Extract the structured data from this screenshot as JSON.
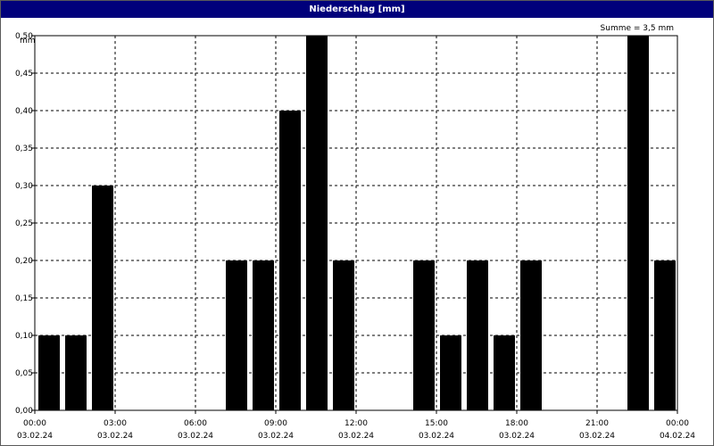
{
  "chart_data": {
    "type": "bar",
    "title": "Niederschlag [mm]",
    "ylabel": "mm",
    "annotation": "Summe = 3,5 mm",
    "ylim": [
      0,
      0.5
    ],
    "xlim": [
      "03.02.24 00:00",
      "04.02.24 00:00"
    ],
    "yticks": [
      "0,00",
      "0,05",
      "0,10",
      "0,15",
      "0,20",
      "0,25",
      "0,30",
      "0,35",
      "0,40",
      "0,45",
      "0,50"
    ],
    "xticks": [
      {
        "time": "00:00",
        "date": "03.02.24"
      },
      {
        "time": "03:00",
        "date": "03.02.24"
      },
      {
        "time": "06:00",
        "date": "03.02.24"
      },
      {
        "time": "09:00",
        "date": "03.02.24"
      },
      {
        "time": "12:00",
        "date": "03.02.24"
      },
      {
        "time": "15:00",
        "date": "03.02.24"
      },
      {
        "time": "18:00",
        "date": "03.02.24"
      },
      {
        "time": "21:00",
        "date": "03.02.24"
      },
      {
        "time": "00:00",
        "date": "04.02.24"
      }
    ],
    "categories": [
      "00:00",
      "01:00",
      "02:00",
      "03:00",
      "04:00",
      "05:00",
      "06:00",
      "07:00",
      "08:00",
      "09:00",
      "10:00",
      "11:00",
      "12:00",
      "13:00",
      "14:00",
      "15:00",
      "16:00",
      "17:00",
      "18:00",
      "19:00",
      "20:00",
      "21:00",
      "22:00",
      "23:00"
    ],
    "values": [
      0.1,
      0.1,
      0.3,
      0,
      0,
      0,
      0,
      0.2,
      0.2,
      0.4,
      0.5,
      0.2,
      0,
      0,
      0.2,
      0.1,
      0.2,
      0.1,
      0.2,
      0,
      0,
      0,
      0.5,
      0.2
    ],
    "grid": true,
    "colors": {
      "bar": "#000000",
      "titlebar": "#00007b",
      "grid": "#000000"
    }
  }
}
